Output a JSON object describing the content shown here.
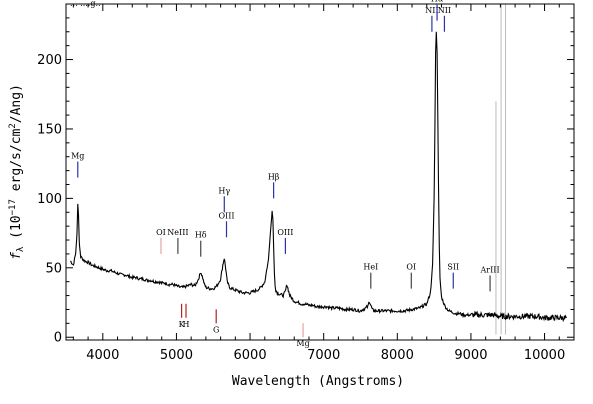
{
  "chart_data": {
    "type": "line",
    "title": "",
    "top_fragment": "... ....g..",
    "xlabel": "Wavelength (Angstroms)",
    "ylabel": "f_λ (10^-17 erg/s/cm^2/Ang)",
    "xlim": [
      3500,
      10400
    ],
    "ylim": [
      -2,
      240
    ],
    "x_ticks": [
      4000,
      5000,
      6000,
      7000,
      8000,
      9000,
      10000
    ],
    "y_ticks": [
      0,
      50,
      100,
      150,
      200
    ],
    "grid": false,
    "legend": "none",
    "colors": {
      "spectrum": "#000000",
      "error": "#bbbbbb",
      "emission_marker": "#2a33a8",
      "absorption_marker": "#b22222",
      "sky_marker": "#e8a0a8",
      "neutral_marker": "#444444"
    },
    "series": [
      {
        "x": [
          3560,
          3600,
          3630,
          3650,
          3660,
          3670,
          3680,
          3700,
          3750,
          3800,
          3850,
          3900,
          3950,
          4000,
          4050,
          4100,
          4150,
          4200,
          4250,
          4300,
          4350,
          4400,
          4450,
          4500,
          4550,
          4600,
          4650,
          4700,
          4750,
          4800,
          4850,
          4900,
          4950,
          5000,
          5050,
          5100,
          5150,
          5200,
          5250,
          5300,
          5330,
          5350,
          5380,
          5400,
          5450,
          5500,
          5550,
          5600,
          5630,
          5650,
          5670,
          5690,
          5720,
          5750,
          5800,
          5850,
          5900,
          5950,
          6000,
          6050,
          6100,
          6150,
          6200,
          6250,
          6280,
          6300,
          6310,
          6320,
          6330,
          6340,
          6350,
          6370,
          6400,
          6450,
          6480,
          6500,
          6520,
          6540,
          6570,
          6600,
          6650,
          6700,
          6750,
          6800,
          6850,
          6900,
          6950,
          7000,
          7050,
          7100,
          7150,
          7200,
          7300,
          7400,
          7500,
          7600,
          7620,
          7640,
          7660,
          7680,
          7700,
          7800,
          7900,
          8000,
          8100,
          8200,
          8300,
          8400,
          8450,
          8480,
          8500,
          8510,
          8520,
          8530,
          8540,
          8550,
          8560,
          8570,
          8580,
          8600,
          8650,
          8700,
          8750,
          8800,
          8850,
          8900,
          8950,
          9000,
          9100,
          9200,
          9300,
          9400,
          9500,
          9600,
          9700,
          9800,
          9900,
          10000,
          10100,
          10200,
          10300
        ],
        "y": [
          55,
          52,
          60,
          75,
          96,
          88,
          68,
          58,
          55,
          54,
          52,
          51,
          50,
          49,
          48,
          48,
          47,
          46,
          45,
          45,
          44,
          43,
          43,
          42,
          42,
          41,
          41,
          40,
          40,
          39,
          39,
          38,
          38,
          37,
          36,
          36,
          37,
          38,
          37,
          42,
          47,
          44,
          38,
          36,
          35,
          35,
          37,
          42,
          52,
          57,
          49,
          40,
          36,
          35,
          34,
          33,
          32,
          32,
          32,
          33,
          34,
          36,
          40,
          56,
          78,
          91,
          85,
          66,
          46,
          38,
          34,
          32,
          31,
          30,
          33,
          38,
          34,
          30,
          28,
          26,
          25,
          24,
          24,
          23,
          23,
          22,
          22,
          22,
          22,
          21,
          21,
          21,
          20,
          20,
          19,
          22,
          26,
          23,
          20,
          19,
          19,
          19,
          19,
          19,
          19,
          20,
          21,
          24,
          32,
          52,
          100,
          150,
          205,
          220,
          205,
          160,
          110,
          65,
          42,
          29,
          22,
          19,
          18,
          17,
          17,
          16,
          16,
          16,
          16,
          16,
          16,
          15,
          15,
          15,
          15,
          15,
          15,
          14,
          14,
          14,
          14
        ]
      }
    ],
    "annotations": [
      {
        "label": "Mg",
        "x": 3660,
        "y": 115,
        "color": "#2a33a8"
      },
      {
        "label": "OI",
        "x": 4790,
        "y": 60,
        "color": "#e8a0a8"
      },
      {
        "label": "NeIII",
        "x": 5020,
        "y": 60,
        "color": "#444444"
      },
      {
        "label": "Hδ",
        "x": 5330,
        "y": 58,
        "color": "#444444"
      },
      {
        "label": "Hγ",
        "x": 5650,
        "y": 90,
        "color": "#2a33a8"
      },
      {
        "label": "OIII",
        "x": 5680,
        "y": 72,
        "color": "#2a33a8"
      },
      {
        "label": "Hβ",
        "x": 6320,
        "y": 100,
        "color": "#2a33a8"
      },
      {
        "label": "OIII",
        "x": 6480,
        "y": 60,
        "color": "#2a33a8"
      },
      {
        "label": "HeI",
        "x": 7640,
        "y": 35,
        "color": "#444444"
      },
      {
        "label": "OI",
        "x": 8190,
        "y": 35,
        "color": "#444444"
      },
      {
        "label": "NII",
        "x": 8470,
        "y": 220,
        "color": "#2a33a8"
      },
      {
        "label": "Hα",
        "x": 8540,
        "y": 228,
        "color": "#2a33a8"
      },
      {
        "label": "NII",
        "x": 8640,
        "y": 220,
        "color": "#2a33a8"
      },
      {
        "label": "SII",
        "x": 8760,
        "y": 35,
        "color": "#2a33a8"
      },
      {
        "label": "ArIII",
        "x": 9260,
        "y": 33,
        "color": "#444444"
      }
    ],
    "absorption_labels": [
      {
        "label": "K",
        "x": 5070,
        "y": 14,
        "color": "#b22222"
      },
      {
        "label": "H",
        "x": 5130,
        "y": 14,
        "color": "#b22222"
      },
      {
        "label": "G",
        "x": 5540,
        "y": 10,
        "color": "#b22222"
      },
      {
        "label": "Mg",
        "x": 6720,
        "y": 0,
        "color": "#e8a0a8"
      }
    ]
  }
}
